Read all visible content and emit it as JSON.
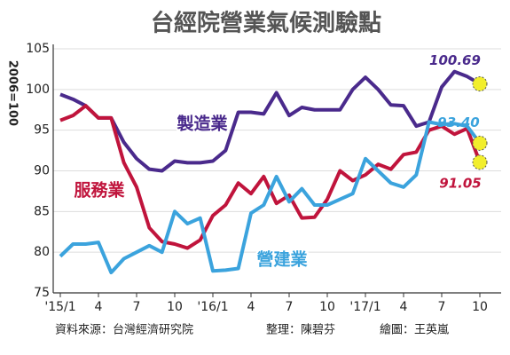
{
  "chart_data": {
    "type": "line",
    "title": "台經院營業氣候測驗點",
    "y_label": "2006=100",
    "source": "資料來源：台灣經濟研究院",
    "editor": "整理：陳碧芬",
    "artist": "繪圖：王英嵐",
    "categories": [
      "'15/1",
      null,
      null,
      "4",
      null,
      null,
      "7",
      null,
      null,
      "10",
      null,
      null,
      "'16/1",
      null,
      null,
      "4",
      null,
      null,
      "7",
      null,
      null,
      "10",
      null,
      null,
      "'17/1",
      null,
      null,
      "4",
      null,
      null,
      "7",
      null,
      null,
      "10"
    ],
    "ylim": [
      75,
      105
    ],
    "yticks": [
      75,
      80,
      85,
      90,
      95,
      100,
      105
    ],
    "grid": true,
    "series": [
      {
        "name": "製造業",
        "color": "#4a2a8c",
        "values": [
          99.4,
          98.8,
          98,
          96.5,
          96.5,
          93.5,
          91.5,
          90.2,
          90,
          91.2,
          91,
          91,
          91.2,
          92.5,
          97.2,
          97.2,
          97,
          99.6,
          96.8,
          97.8,
          97.5,
          97.5,
          97.5,
          100,
          101.5,
          100,
          98.1,
          98,
          95.5,
          96,
          100.3,
          102.2,
          101.6,
          100.69
        ],
        "value_labels": [
          null,
          null,
          null,
          null,
          null,
          null,
          null,
          null,
          null,
          null,
          null,
          null,
          null,
          null,
          null,
          null,
          null,
          null,
          null,
          null,
          null,
          null,
          null,
          null,
          null,
          null,
          null,
          null,
          null,
          null,
          null,
          null,
          null,
          "100.69"
        ]
      },
      {
        "name": "服務業",
        "color": "#c0143c",
        "values": [
          96.2,
          96.8,
          98,
          96.5,
          96.5,
          91,
          88,
          83,
          81.3,
          81,
          80.5,
          81.5,
          84.5,
          85.8,
          88.5,
          87.2,
          89.3,
          86,
          87,
          84.2,
          84.3,
          86.5,
          90,
          88.8,
          89.5,
          90.8,
          90.2,
          92,
          92.3,
          95,
          95.5,
          94.5,
          95.2,
          91.05
        ],
        "value_labels": [
          null,
          null,
          null,
          null,
          null,
          null,
          null,
          null,
          null,
          null,
          null,
          null,
          null,
          null,
          null,
          null,
          null,
          null,
          null,
          null,
          null,
          null,
          null,
          null,
          null,
          null,
          null,
          null,
          null,
          null,
          null,
          null,
          null,
          "91.05"
        ]
      },
      {
        "name": "營建業",
        "color": "#3ba3dd",
        "values": [
          79.5,
          81,
          81,
          81.2,
          77.5,
          79.2,
          80,
          80.8,
          80,
          85,
          83.5,
          84.2,
          77.7,
          77.8,
          78,
          84.8,
          85.8,
          89.3,
          86.2,
          87.8,
          85.8,
          85.8,
          86.5,
          87.2,
          91.5,
          90,
          88.5,
          88,
          89.5,
          96,
          95.7,
          95.8,
          95.5,
          93.4
        ],
        "value_labels": [
          null,
          null,
          null,
          null,
          null,
          null,
          null,
          null,
          null,
          null,
          null,
          null,
          null,
          null,
          null,
          null,
          null,
          null,
          null,
          null,
          null,
          null,
          null,
          null,
          null,
          null,
          null,
          null,
          null,
          null,
          null,
          null,
          null,
          "93.40"
        ]
      }
    ]
  }
}
